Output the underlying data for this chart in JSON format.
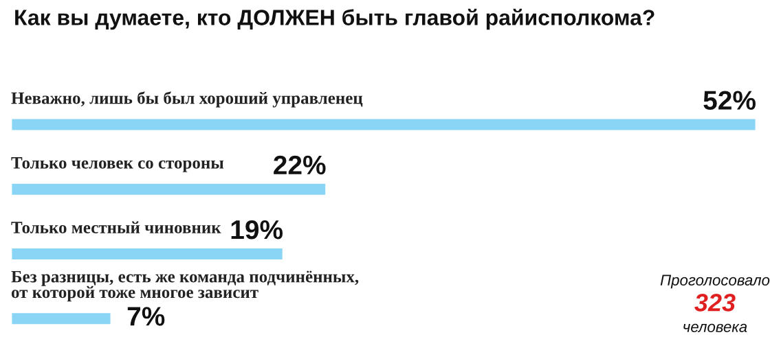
{
  "chart_data": {
    "type": "bar",
    "orientation": "horizontal",
    "title": "Как вы думаете, кто ДОЛЖЕН быть главой райисполкома?",
    "categories": [
      "Неважно, лишь бы был хороший управленец",
      "Только человек со стороны",
      "Только местный чиновник",
      "Без разницы, есть же команда подчинённых,\nот которой тоже многое зависит"
    ],
    "values": [
      52,
      22,
      19,
      7
    ],
    "value_labels": [
      "52%",
      "22%",
      "19%",
      "7%"
    ],
    "color": "#8ad4f5",
    "xlim": [
      0,
      52
    ],
    "tick_labels": false,
    "annotations": [
      "Проголосовало",
      "323",
      "человека"
    ]
  }
}
